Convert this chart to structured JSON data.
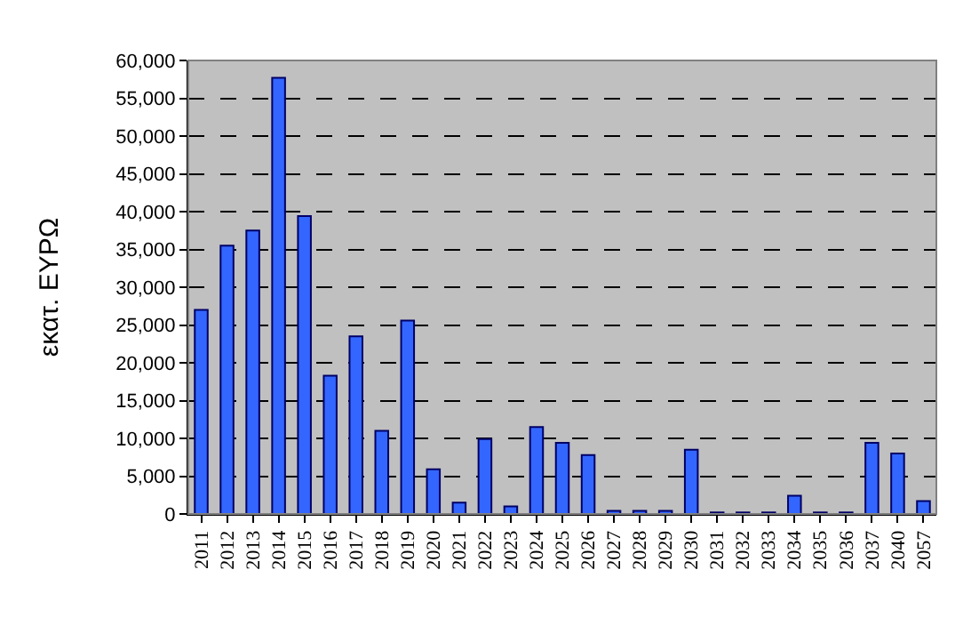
{
  "chart_data": {
    "type": "bar",
    "ylabel": "εκατ. ΕΥΡΩ",
    "categories": [
      "2011",
      "2012",
      "2013",
      "2014",
      "2015",
      "2016",
      "2017",
      "2018",
      "2019",
      "2020",
      "2021",
      "2022",
      "2023",
      "2024",
      "2025",
      "2026",
      "2027",
      "2028",
      "2029",
      "2030",
      "2031",
      "2032",
      "2033",
      "2034",
      "2035",
      "2036",
      "2037",
      "2040",
      "2057"
    ],
    "values": [
      27000,
      35500,
      37500,
      57700,
      39400,
      18300,
      23500,
      11000,
      25600,
      5900,
      1500,
      9900,
      1000,
      11500,
      9400,
      7800,
      400,
      400,
      400,
      8500,
      200,
      200,
      200,
      2400,
      200,
      200,
      9400,
      8000,
      1700
    ],
    "color": "#3366ff",
    "ylim": [
      0,
      60000
    ],
    "yticks": [
      {
        "value": 0,
        "label": "0"
      },
      {
        "value": 5000,
        "label": "5,000"
      },
      {
        "value": 10000,
        "label": "10,000"
      },
      {
        "value": 15000,
        "label": "15,000"
      },
      {
        "value": 20000,
        "label": "20,000"
      },
      {
        "value": 25000,
        "label": "25,000"
      },
      {
        "value": 30000,
        "label": "30,000"
      },
      {
        "value": 35000,
        "label": "35,000"
      },
      {
        "value": 40000,
        "label": "40,000"
      },
      {
        "value": 45000,
        "label": "45,000"
      },
      {
        "value": 50000,
        "label": "50,000"
      },
      {
        "value": 55000,
        "label": "55,000"
      },
      {
        "value": 60000,
        "label": "60,000"
      }
    ],
    "grid": "y",
    "legend": false
  }
}
